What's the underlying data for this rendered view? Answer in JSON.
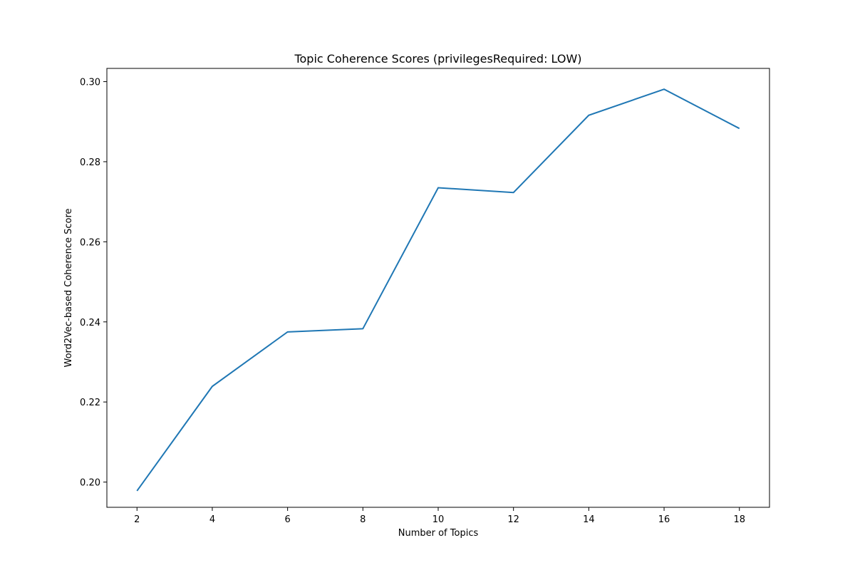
{
  "chart_data": {
    "type": "line",
    "title": "Topic Coherence Scores (privilegesRequired: LOW)",
    "xlabel": "Number of Topics",
    "ylabel": "Word2Vec-based Coherence Score",
    "x": [
      2,
      4,
      6,
      8,
      10,
      12,
      14,
      16,
      18
    ],
    "series": [
      {
        "values": [
          0.1978,
          0.2239,
          0.2375,
          0.2383,
          0.2735,
          0.2723,
          0.2916,
          0.2981,
          0.2883
        ]
      }
    ],
    "xlim": [
      1.2,
      18.8
    ],
    "ylim": [
      0.1937,
      0.3033
    ],
    "xticks": [
      2,
      4,
      6,
      8,
      10,
      12,
      14,
      16,
      18
    ],
    "xtick_labels": [
      "2",
      "4",
      "6",
      "8",
      "10",
      "12",
      "14",
      "16",
      "18"
    ],
    "yticks": [
      0.2,
      0.22,
      0.24,
      0.26,
      0.28,
      0.3
    ],
    "ytick_labels": [
      "0.20",
      "0.22",
      "0.24",
      "0.26",
      "0.28",
      "0.30"
    ],
    "grid": false,
    "line_color": "#1f77b4"
  }
}
